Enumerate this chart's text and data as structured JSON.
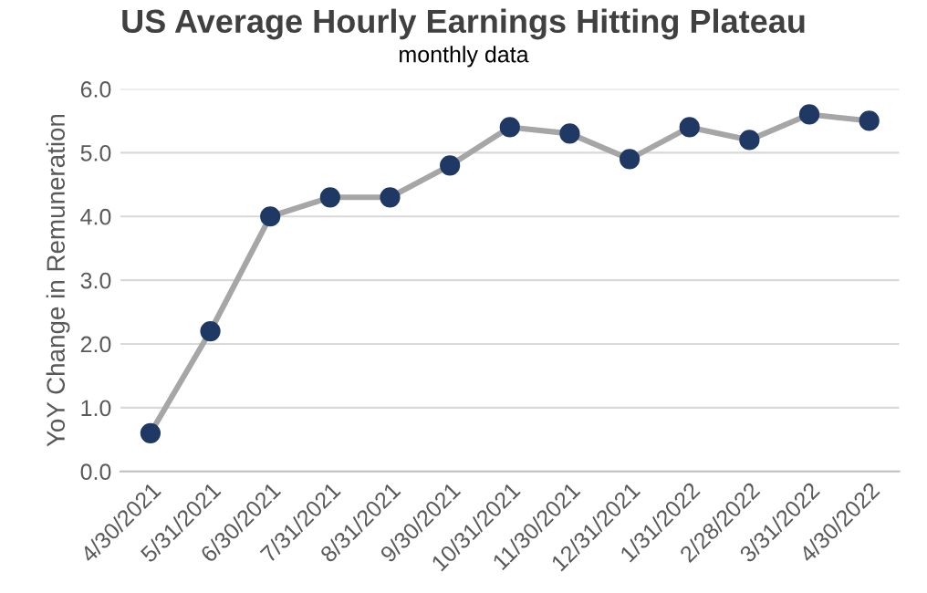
{
  "chart_data": {
    "type": "line",
    "title": "US Average Hourly Earnings Hitting Plateau",
    "subtitle": "monthly data",
    "ylabel": "YoY Change in Remuneration",
    "categories": [
      "4/30/2021",
      "5/31/2021",
      "6/30/2021",
      "7/31/2021",
      "8/31/2021",
      "9/30/2021",
      "10/31/2021",
      "11/30/2021",
      "12/31/2021",
      "1/31/2022",
      "2/28/2022",
      "3/31/2022",
      "4/30/2022"
    ],
    "series": [
      {
        "color": "#a6a6a6",
        "colors": [
          "#1f3864",
          "#1f3864",
          "#1f3864",
          "#1f3864",
          "#1f3864",
          "#1f3864",
          "#1f3864",
          "#1f3864",
          "#1f3864",
          "#1f3864",
          "#1f3864",
          "#1f3864",
          "#1f3864"
        ],
        "values": [
          0.6,
          2.2,
          4.0,
          4.3,
          4.3,
          4.8,
          5.4,
          5.3,
          4.9,
          5.4,
          5.2,
          5.6,
          5.5
        ]
      }
    ],
    "ylim": [
      0,
      6
    ],
    "yticks": [
      {
        "value": 0,
        "label": "0.0"
      },
      {
        "value": 1,
        "label": "1.0"
      },
      {
        "value": 2,
        "label": "2.0"
      },
      {
        "value": 3,
        "label": "3.0"
      },
      {
        "value": 4,
        "label": "4.0"
      },
      {
        "value": 5,
        "label": "5.0"
      },
      {
        "value": 6,
        "label": "6.0"
      }
    ],
    "grid": "y",
    "marker": "circle",
    "line_style": "solid"
  }
}
